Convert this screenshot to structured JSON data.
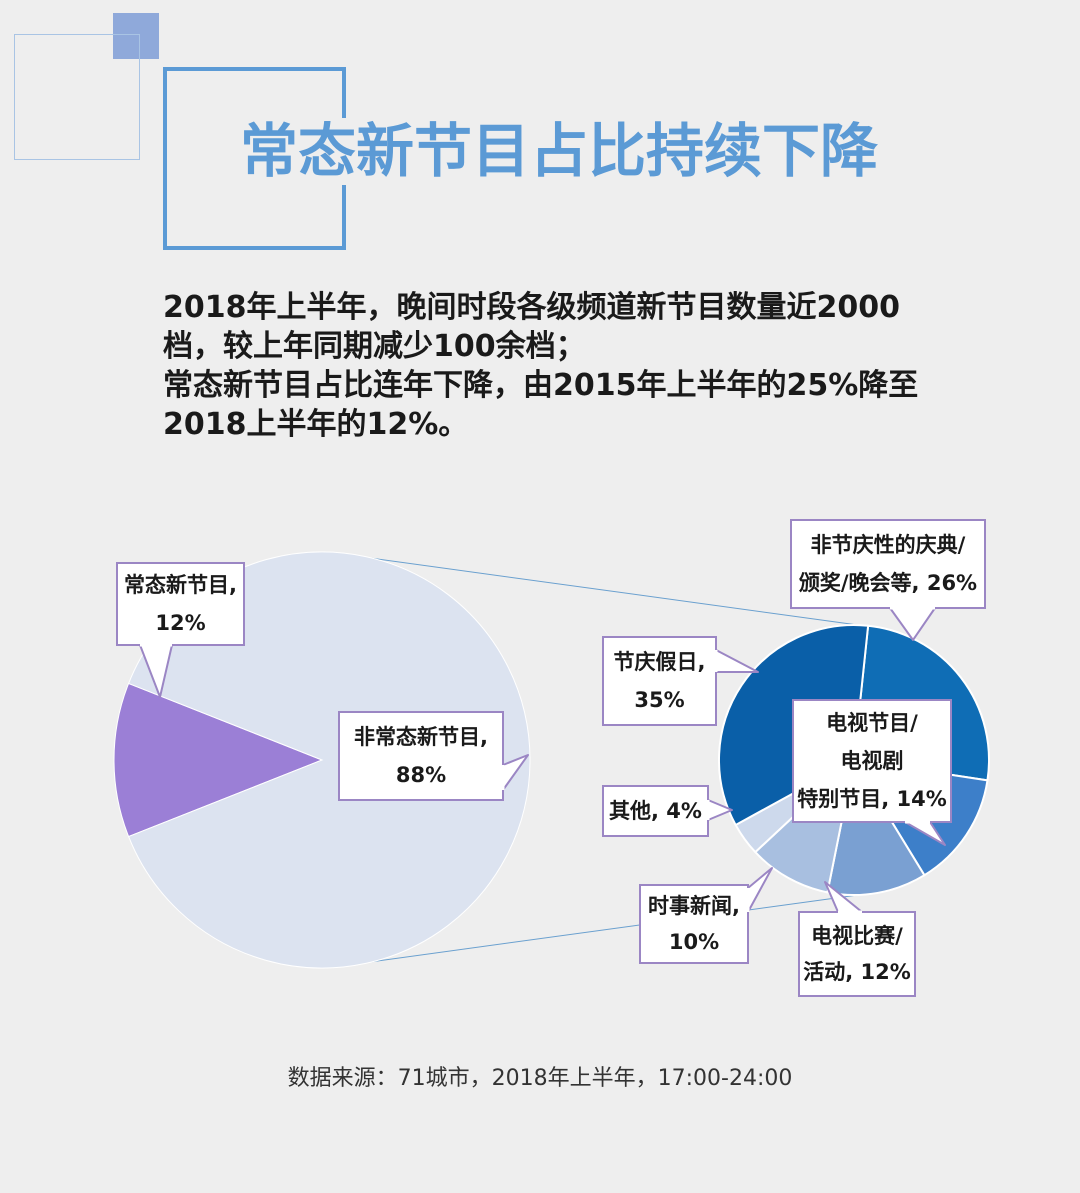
{
  "title": "常态新节目占比持续下降",
  "summary": [
    "2018年上半年，晚间时段各级频道新节目数量近2000",
    "档，较上年同期减少100余档；",
    "常态新节目占比连年下降，由2015年上半年的25%降至",
    "2018上半年的12%。"
  ],
  "chart_data": [
    {
      "type": "pie",
      "slices": [
        {
          "label": "常态新节目",
          "value": 12,
          "value_label": "12%",
          "color": "#9b7fd6"
        },
        {
          "label": "非常态新节目",
          "value": 88,
          "value_label": "88%",
          "color": "#dce3f0"
        }
      ]
    },
    {
      "type": "pie",
      "slices": [
        {
          "label": "非节庆性的庆典/颁奖/晚会等",
          "value": 26,
          "value_label": "26%",
          "color": "#0f6db5"
        },
        {
          "label": "电视节目/电视剧特别节目",
          "value": 14,
          "value_label": "14%",
          "color": "#3d7fc9"
        },
        {
          "label": "电视比赛/活动",
          "value": 12,
          "value_label": "12%",
          "color": "#7aa0d2"
        },
        {
          "label": "时事新闻",
          "value": 10,
          "value_label": "10%",
          "color": "#a8bfe0"
        },
        {
          "label": "其他",
          "value": 4,
          "value_label": "4%",
          "color": "#cdd9ec"
        },
        {
          "label": "节庆假日",
          "value": 35,
          "value_label": "35%",
          "color": "#0a5fa8"
        }
      ]
    }
  ],
  "callouts": {
    "c_regular": [
      "常态新节目,",
      "12%"
    ],
    "c_nonregular": [
      "非常态新节目,",
      "88%"
    ],
    "c_ceremony": [
      "非节庆性的庆典/",
      "颁奖/晚会等, 26%"
    ],
    "c_holiday": [
      "节庆假日,",
      "35%"
    ],
    "c_tv_special": [
      "电视节目/",
      "电视剧",
      "特别节目, 14%"
    ],
    "c_other": [
      "其他, 4%"
    ],
    "c_news": [
      "时事新闻,",
      "10%"
    ],
    "c_contest": [
      "电视比赛/",
      "活动, 12%"
    ]
  },
  "source": "数据来源：71城市，2018年上半年，17:00-24:00"
}
